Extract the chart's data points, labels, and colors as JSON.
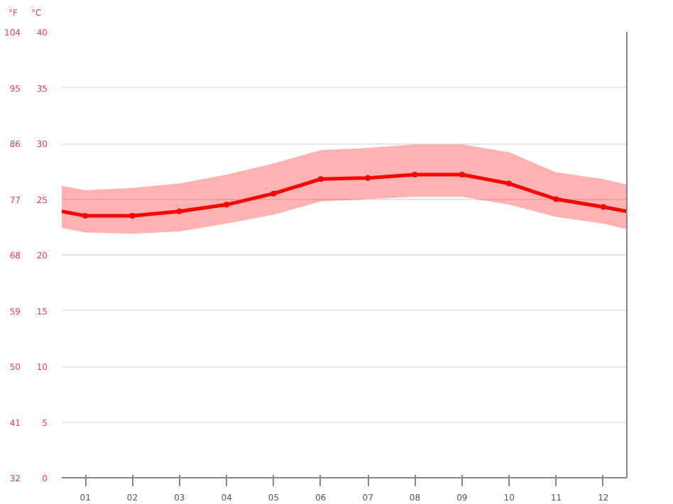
{
  "chart_data": {
    "type": "line",
    "ylabel": "°C",
    "y2label": "°F",
    "x": [
      0.5,
      1,
      2,
      3,
      4,
      5,
      6,
      7,
      8,
      9,
      10,
      11,
      12,
      12.5
    ],
    "series": [
      {
        "color": "#ff0000",
        "values": [
          23.9,
          23.5,
          23.5,
          23.9,
          24.5,
          25.5,
          26.8,
          26.9,
          27.2,
          27.2,
          26.4,
          25.0,
          24.3,
          23.9
        ],
        "lower": [
          22.4,
          22.0,
          21.9,
          22.1,
          22.8,
          23.6,
          24.8,
          25.0,
          25.2,
          25.2,
          24.5,
          23.4,
          22.8,
          22.3
        ],
        "upper": [
          26.2,
          25.8,
          26.0,
          26.4,
          27.2,
          28.2,
          29.4,
          29.6,
          29.9,
          29.9,
          29.2,
          27.4,
          26.8,
          26.3
        ]
      }
    ],
    "xlim": [
      0.5,
      12.5
    ],
    "xticks": [
      {
        "value": 1,
        "label": "01"
      },
      {
        "value": 2,
        "label": "02"
      },
      {
        "value": 3,
        "label": "03"
      },
      {
        "value": 4,
        "label": "04"
      },
      {
        "value": 5,
        "label": "05"
      },
      {
        "value": 6,
        "label": "06"
      },
      {
        "value": 7,
        "label": "07"
      },
      {
        "value": 8,
        "label": "08"
      },
      {
        "value": 9,
        "label": "09"
      },
      {
        "value": 10,
        "label": "10"
      },
      {
        "value": 11,
        "label": "11"
      },
      {
        "value": 12,
        "label": "12"
      }
    ],
    "ylim": [
      0,
      40
    ],
    "yticks": [
      0,
      5,
      10,
      15,
      20,
      25,
      30,
      35,
      40
    ],
    "y2lim": [
      32,
      104
    ],
    "y2ticks": [
      32,
      41,
      50,
      59,
      68,
      77,
      86,
      95,
      104
    ],
    "grid": "y",
    "marker": "circle",
    "line_style": "solid"
  }
}
